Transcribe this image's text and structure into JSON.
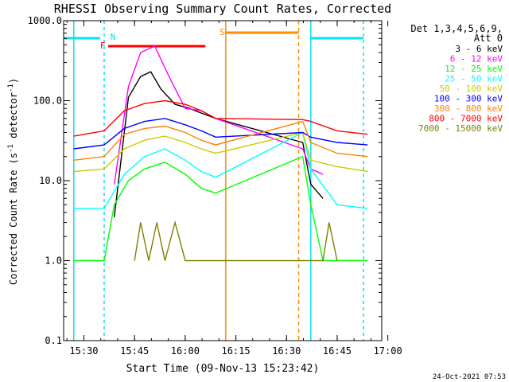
{
  "chart_data": {
    "type": "line",
    "title": "RHESSI Observing Summary Count Rates, Corrected",
    "xlabel": "Start Time (09-Nov-13 15:23:42)",
    "ylabel_main": "Corrected Count Rate (s",
    "ylabel_sup1": "-1",
    "ylabel_mid": " detector",
    "ylabel_sup2": "-1",
    "ylabel_end": ")",
    "yscale": "log",
    "ylim": [
      0.1,
      1000
    ],
    "xlim_minutes": [
      15.4,
      16.97
    ],
    "x_ticks": [
      "15:30",
      "15:45",
      "16:00",
      "16:15",
      "16:30",
      "16:45",
      "17:00"
    ],
    "y_ticks": [
      "0.1",
      "1.0",
      "10.0",
      "100.0",
      "1000.0"
    ],
    "legend_header": [
      "Det 1,3,4,5,6,9,",
      "Att 0"
    ],
    "timestamp": "24-Oct-2021 07:53",
    "markers": [
      {
        "label": "N",
        "color": "#00e5ee"
      },
      {
        "label": "F",
        "color": "#ff0000"
      },
      {
        "label": "S",
        "color": "#ff8c00"
      }
    ],
    "series": [
      {
        "name": "3 - 6 keV",
        "color": "#000000",
        "values": [
          [
            15.65,
            3.5
          ],
          [
            15.72,
            110
          ],
          [
            15.78,
            200
          ],
          [
            15.83,
            230
          ],
          [
            15.88,
            140
          ],
          [
            15.95,
            90
          ],
          [
            16.02,
            80
          ],
          [
            16.08,
            70
          ],
          [
            16.15,
            60
          ],
          [
            16.58,
            30
          ],
          [
            16.62,
            9
          ],
          [
            16.68,
            6
          ]
        ]
      },
      {
        "name": "6 - 12 keV",
        "color": "#ff00ff",
        "values": [
          [
            15.65,
            9
          ],
          [
            15.72,
            150
          ],
          [
            15.78,
            400
          ],
          [
            15.85,
            480
          ],
          [
            15.92,
            200
          ],
          [
            16.0,
            80
          ],
          [
            16.08,
            75
          ],
          [
            16.15,
            60
          ],
          [
            16.58,
            25
          ],
          [
            16.62,
            14
          ],
          [
            16.68,
            12
          ]
        ]
      },
      {
        "name": "12 - 25 keV",
        "color": "#00ff00",
        "values": [
          [
            15.45,
            1.0
          ],
          [
            15.6,
            1.0
          ],
          [
            15.65,
            5
          ],
          [
            15.72,
            10
          ],
          [
            15.8,
            14
          ],
          [
            15.9,
            17
          ],
          [
            16.0,
            12
          ],
          [
            16.08,
            8
          ],
          [
            16.15,
            7
          ],
          [
            16.58,
            20
          ],
          [
            16.62,
            5
          ],
          [
            16.68,
            1.0
          ],
          [
            16.9,
            1.0
          ]
        ]
      },
      {
        "name": "25 - 50 keV",
        "color": "#00ffff",
        "values": [
          [
            15.45,
            4.5
          ],
          [
            15.6,
            4.5
          ],
          [
            15.7,
            12
          ],
          [
            15.8,
            20
          ],
          [
            15.9,
            25
          ],
          [
            16.0,
            18
          ],
          [
            16.08,
            13
          ],
          [
            16.15,
            11
          ],
          [
            16.58,
            40
          ],
          [
            16.62,
            14
          ],
          [
            16.75,
            5
          ],
          [
            16.9,
            4.5
          ]
        ]
      },
      {
        "name": "50 - 100 keV",
        "color": "#cccc00",
        "values": [
          [
            15.45,
            13
          ],
          [
            15.6,
            14
          ],
          [
            15.7,
            25
          ],
          [
            15.8,
            32
          ],
          [
            15.9,
            36
          ],
          [
            16.0,
            30
          ],
          [
            16.08,
            25
          ],
          [
            16.15,
            22
          ],
          [
            16.58,
            40
          ],
          [
            16.62,
            18
          ],
          [
            16.75,
            15
          ],
          [
            16.9,
            13
          ]
        ]
      },
      {
        "name": "100 - 300 keV",
        "color": "#0000ff",
        "values": [
          [
            15.45,
            25
          ],
          [
            15.6,
            28
          ],
          [
            15.7,
            45
          ],
          [
            15.8,
            55
          ],
          [
            15.9,
            60
          ],
          [
            16.0,
            50
          ],
          [
            16.08,
            42
          ],
          [
            16.15,
            35
          ],
          [
            16.58,
            40
          ],
          [
            16.62,
            35
          ],
          [
            16.75,
            30
          ],
          [
            16.9,
            28
          ]
        ]
      },
      {
        "name": "300 - 800 keV",
        "color": "#ff8000",
        "values": [
          [
            15.45,
            18
          ],
          [
            15.6,
            20
          ],
          [
            15.7,
            38
          ],
          [
            15.8,
            45
          ],
          [
            15.9,
            48
          ],
          [
            16.0,
            40
          ],
          [
            16.08,
            32
          ],
          [
            16.15,
            28
          ],
          [
            16.58,
            55
          ],
          [
            16.62,
            30
          ],
          [
            16.75,
            22
          ],
          [
            16.9,
            20
          ]
        ]
      },
      {
        "name": "800 - 7000 keV",
        "color": "#ff0000",
        "values": [
          [
            15.45,
            36
          ],
          [
            15.6,
            42
          ],
          [
            15.7,
            75
          ],
          [
            15.8,
            92
          ],
          [
            15.9,
            100
          ],
          [
            16.0,
            90
          ],
          [
            16.08,
            75
          ],
          [
            16.15,
            60
          ],
          [
            16.58,
            58
          ],
          [
            16.62,
            55
          ],
          [
            16.75,
            42
          ],
          [
            16.9,
            38
          ]
        ]
      },
      {
        "name": "7000 - 15000 keV",
        "color": "#808000",
        "values": [
          [
            15.75,
            1.0
          ],
          [
            15.78,
            3
          ],
          [
            15.82,
            1.0
          ],
          [
            15.86,
            3
          ],
          [
            15.9,
            1.0
          ],
          [
            15.95,
            3
          ],
          [
            16.0,
            1.0
          ],
          [
            16.68,
            1.0
          ],
          [
            16.71,
            3
          ],
          [
            16.75,
            1.0
          ]
        ]
      }
    ]
  }
}
